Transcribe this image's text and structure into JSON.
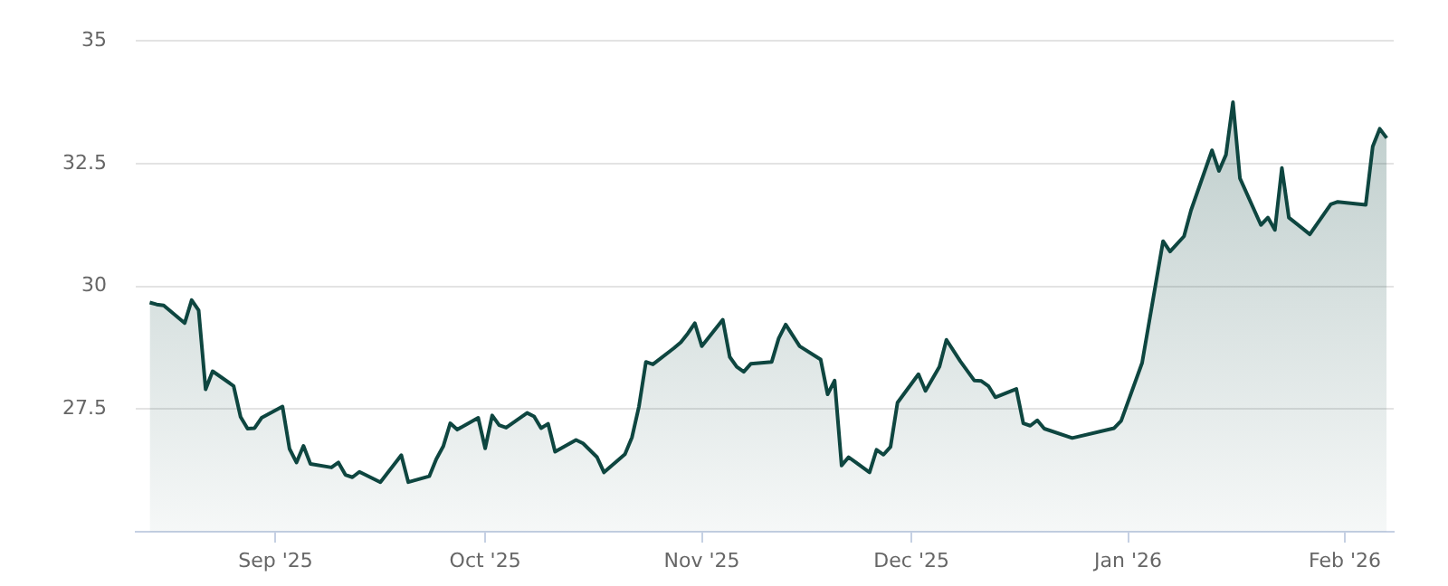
{
  "chart_data": {
    "type": "area",
    "x": [
      "2025-08-14",
      "2025-08-15",
      "2025-08-16",
      "2025-08-19",
      "2025-08-20",
      "2025-08-21",
      "2025-08-22",
      "2025-08-23",
      "2025-08-26",
      "2025-08-27",
      "2025-08-28",
      "2025-08-29",
      "2025-08-30",
      "2025-09-02",
      "2025-09-03",
      "2025-09-04",
      "2025-09-05",
      "2025-09-06",
      "2025-09-09",
      "2025-09-10",
      "2025-09-11",
      "2025-09-12",
      "2025-09-13",
      "2025-09-16",
      "2025-09-19",
      "2025-09-20",
      "2025-09-23",
      "2025-09-24",
      "2025-09-25",
      "2025-09-26",
      "2025-09-27",
      "2025-09-30",
      "2025-10-01",
      "2025-10-02",
      "2025-10-03",
      "2025-10-04",
      "2025-10-07",
      "2025-10-08",
      "2025-10-09",
      "2025-10-10",
      "2025-10-11",
      "2025-10-14",
      "2025-10-15",
      "2025-10-17",
      "2025-10-18",
      "2025-10-21",
      "2025-10-22",
      "2025-10-23",
      "2025-10-24",
      "2025-10-25",
      "2025-10-28",
      "2025-10-29",
      "2025-10-30",
      "2025-10-31",
      "2025-11-01",
      "2025-11-04",
      "2025-11-05",
      "2025-11-06",
      "2025-11-07",
      "2025-11-08",
      "2025-11-11",
      "2025-11-12",
      "2025-11-13",
      "2025-11-15",
      "2025-11-18",
      "2025-11-19",
      "2025-11-20",
      "2025-11-21",
      "2025-11-22",
      "2025-11-25",
      "2025-11-26",
      "2025-11-27",
      "2025-11-28",
      "2025-11-29",
      "2025-12-02",
      "2025-12-03",
      "2025-12-05",
      "2025-12-06",
      "2025-12-08",
      "2025-12-10",
      "2025-12-11",
      "2025-12-12",
      "2025-12-13",
      "2025-12-16",
      "2025-12-17",
      "2025-12-18",
      "2025-12-19",
      "2025-12-20",
      "2025-12-24",
      "2025-12-30",
      "2025-12-31",
      "2026-01-03",
      "2026-01-06",
      "2026-01-07",
      "2026-01-09",
      "2026-01-10",
      "2026-01-13",
      "2026-01-14",
      "2026-01-15",
      "2026-01-16",
      "2026-01-17",
      "2026-01-20",
      "2026-01-21",
      "2026-01-22",
      "2026-01-23",
      "2026-01-24",
      "2026-01-27",
      "2026-01-30",
      "2026-01-31",
      "2026-02-04",
      "2026-02-05",
      "2026-02-06",
      "2026-02-07"
    ],
    "series": [
      {
        "color": "#0e4640",
        "values": [
          29.67,
          29.63,
          29.61,
          29.25,
          29.72,
          29.51,
          27.9,
          28.27,
          27.97,
          27.34,
          27.1,
          27.11,
          27.32,
          27.55,
          26.69,
          26.41,
          26.75,
          26.38,
          26.31,
          26.41,
          26.16,
          26.11,
          26.22,
          26.01,
          26.56,
          26.01,
          26.13,
          26.48,
          26.74,
          27.21,
          27.08,
          27.32,
          26.7,
          27.37,
          27.17,
          27.12,
          27.42,
          27.35,
          27.11,
          27.2,
          26.63,
          26.87,
          26.8,
          26.52,
          26.21,
          26.58,
          26.92,
          27.55,
          28.46,
          28.41,
          28.74,
          28.86,
          29.04,
          29.25,
          28.78,
          29.32,
          28.56,
          28.36,
          28.26,
          28.42,
          28.46,
          28.94,
          29.22,
          28.78,
          28.51,
          27.8,
          28.08,
          26.35,
          26.52,
          26.21,
          26.67,
          26.57,
          26.73,
          27.63,
          28.21,
          27.87,
          28.36,
          28.91,
          28.47,
          28.08,
          28.07,
          27.97,
          27.74,
          27.91,
          27.21,
          27.16,
          27.27,
          27.1,
          26.91,
          27.11,
          27.26,
          28.44,
          30.92,
          30.71,
          31.02,
          31.55,
          32.77,
          32.35,
          32.68,
          33.75,
          32.2,
          31.25,
          31.4,
          31.15,
          32.41,
          31.4,
          31.06,
          31.67,
          31.72,
          31.66,
          32.85,
          33.21,
          33.02
        ]
      }
    ],
    "xlim": [
      "2025-08-12",
      "2026-02-08"
    ],
    "xticks": [
      {
        "value": "2025-09-01",
        "label": "Sep '25"
      },
      {
        "value": "2025-10-01",
        "label": "Oct '25"
      },
      {
        "value": "2025-11-01",
        "label": "Nov '25"
      },
      {
        "value": "2025-12-01",
        "label": "Dec '25"
      },
      {
        "value": "2026-01-01",
        "label": "Jan '26"
      },
      {
        "value": "2026-02-01",
        "label": "Feb '26"
      }
    ],
    "ylim": [
      25,
      35
    ],
    "yticks": [
      27.5,
      30,
      32.5,
      35
    ],
    "grid": "y"
  }
}
